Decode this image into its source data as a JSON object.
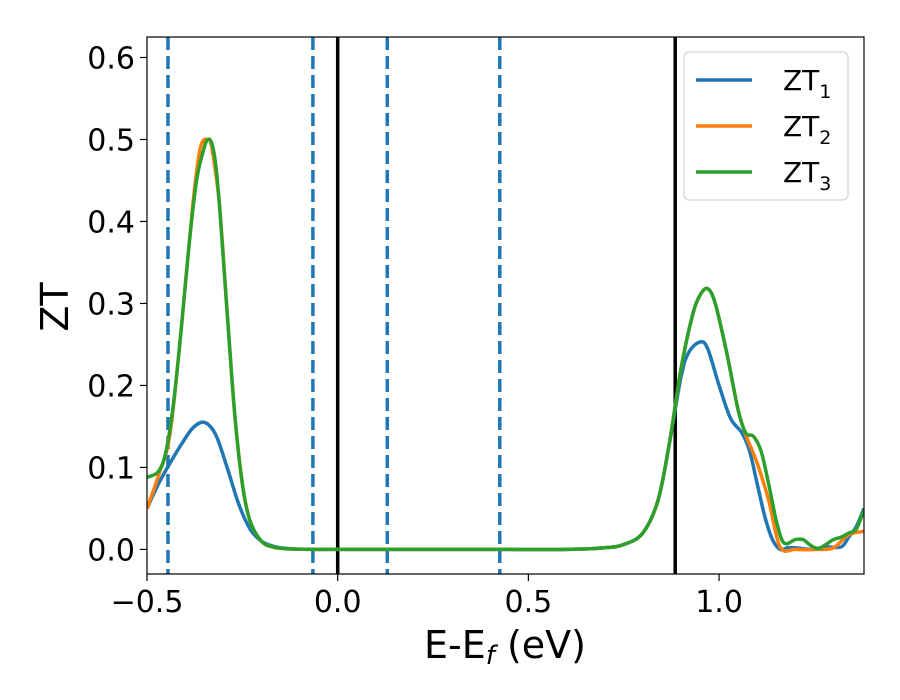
{
  "chart_data": {
    "type": "line",
    "title": "",
    "xlabel": "E-E",
    "xlabel_sub": "f",
    "xlabel_unit": " (eV)",
    "ylabel": "ZT",
    "xlim": [
      -0.5,
      1.38
    ],
    "ylim": [
      -0.03,
      0.625
    ],
    "grid": false,
    "legend_position": "top-right",
    "xticks": [
      -0.5,
      0.0,
      0.5,
      1.0
    ],
    "xtick_labels": [
      "−0.5",
      "0.0",
      "0.5",
      "1.0"
    ],
    "yticks": [
      0.0,
      0.1,
      0.2,
      0.3,
      0.4,
      0.5,
      0.6
    ],
    "ytick_labels": [
      "0.0",
      "0.1",
      "0.2",
      "0.3",
      "0.4",
      "0.5",
      "0.6"
    ],
    "vlines_solid": {
      "color": "#000000",
      "x": [
        0.0,
        0.885
      ]
    },
    "vlines_dashed": {
      "color": "#1f77b4",
      "x": [
        -0.445,
        -0.065,
        0.13,
        0.425
      ]
    },
    "series": [
      {
        "name": "ZT",
        "name_sub": "1",
        "color": "#1f77b4",
        "x": [
          -0.5,
          -0.47,
          -0.44,
          -0.41,
          -0.38,
          -0.35,
          -0.32,
          -0.29,
          -0.26,
          -0.23,
          -0.2,
          -0.17,
          -0.14,
          -0.11,
          -0.08,
          -0.05,
          0.0,
          0.2,
          0.4,
          0.6,
          0.7,
          0.75,
          0.8,
          0.84,
          0.87,
          0.9,
          0.92,
          0.95,
          0.97,
          1.0,
          1.03,
          1.06,
          1.08,
          1.1,
          1.12,
          1.14,
          1.16,
          1.18,
          1.2,
          1.24,
          1.28,
          1.32,
          1.34,
          1.36,
          1.38
        ],
        "y": [
          0.05,
          0.08,
          0.105,
          0.128,
          0.148,
          0.155,
          0.14,
          0.1,
          0.056,
          0.025,
          0.01,
          0.004,
          0.0015,
          0.0005,
          0.0002,
          0.0001,
          0.0,
          0.0,
          0.0,
          0.0,
          0.002,
          0.006,
          0.02,
          0.06,
          0.13,
          0.21,
          0.24,
          0.253,
          0.245,
          0.2,
          0.16,
          0.142,
          0.12,
          0.08,
          0.04,
          0.012,
          0.0,
          0.002,
          0.002,
          0.0,
          0.003,
          0.003,
          0.015,
          0.028,
          0.05
        ]
      },
      {
        "name": "ZT",
        "name_sub": "2",
        "color": "#ff7f0e",
        "x": [
          -0.5,
          -0.47,
          -0.44,
          -0.41,
          -0.38,
          -0.36,
          -0.34,
          -0.33,
          -0.31,
          -0.29,
          -0.27,
          -0.25,
          -0.23,
          -0.2,
          -0.17,
          -0.14,
          -0.11,
          -0.08,
          -0.05,
          0.0,
          0.2,
          0.4,
          0.6,
          0.7,
          0.75,
          0.8,
          0.84,
          0.87,
          0.9,
          0.93,
          0.95,
          0.97,
          0.99,
          1.02,
          1.05,
          1.07,
          1.1,
          1.13,
          1.16,
          1.2,
          1.26,
          1.3,
          1.34,
          1.38
        ],
        "y": [
          0.05,
          0.09,
          0.14,
          0.27,
          0.42,
          0.49,
          0.5,
          0.49,
          0.42,
          0.29,
          0.165,
          0.08,
          0.035,
          0.01,
          0.003,
          0.001,
          0.0003,
          0.0001,
          0.0,
          0.0,
          0.0,
          0.0,
          0.0,
          0.002,
          0.006,
          0.02,
          0.06,
          0.13,
          0.22,
          0.285,
          0.31,
          0.318,
          0.3,
          0.24,
          0.17,
          0.14,
          0.105,
          0.06,
          0.003,
          0.0,
          0.0,
          0.002,
          0.018,
          0.022
        ]
      },
      {
        "name": "ZT",
        "name_sub": "3",
        "color": "#2ca02c",
        "x": [
          -0.5,
          -0.47,
          -0.45,
          -0.43,
          -0.41,
          -0.39,
          -0.37,
          -0.35,
          -0.34,
          -0.33,
          -0.32,
          -0.31,
          -0.29,
          -0.27,
          -0.25,
          -0.23,
          -0.2,
          -0.17,
          -0.14,
          -0.11,
          -0.08,
          -0.05,
          0.0,
          0.2,
          0.4,
          0.6,
          0.7,
          0.75,
          0.8,
          0.84,
          0.87,
          0.9,
          0.93,
          0.95,
          0.97,
          0.99,
          1.02,
          1.05,
          1.07,
          1.09,
          1.11,
          1.13,
          1.15,
          1.17,
          1.2,
          1.22,
          1.24,
          1.26,
          1.28,
          1.3,
          1.32,
          1.34,
          1.36,
          1.38
        ],
        "y": [
          0.088,
          0.095,
          0.12,
          0.18,
          0.27,
          0.37,
          0.45,
          0.49,
          0.5,
          0.495,
          0.47,
          0.42,
          0.29,
          0.165,
          0.08,
          0.035,
          0.01,
          0.003,
          0.001,
          0.0003,
          0.0001,
          0.0,
          0.0,
          0.0,
          0.0,
          0.0,
          0.002,
          0.006,
          0.02,
          0.06,
          0.13,
          0.22,
          0.285,
          0.31,
          0.318,
          0.3,
          0.24,
          0.17,
          0.142,
          0.138,
          0.12,
          0.08,
          0.035,
          0.008,
          0.012,
          0.012,
          0.005,
          0.001,
          0.006,
          0.012,
          0.015,
          0.02,
          0.025,
          0.048
        ]
      }
    ]
  }
}
